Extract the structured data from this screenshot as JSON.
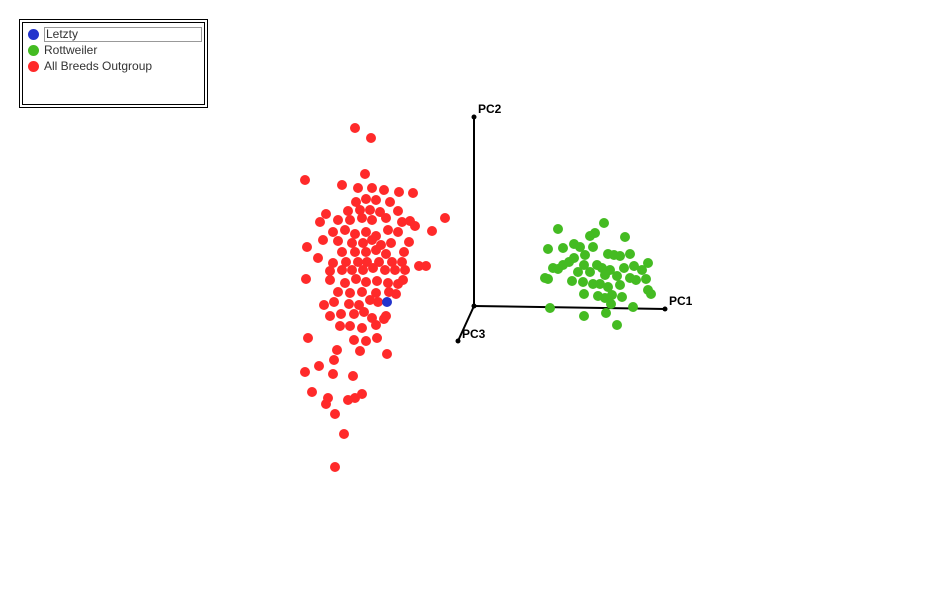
{
  "legend": {
    "items": [
      {
        "label": "Letzty",
        "color": "#2233cc",
        "selected": true
      },
      {
        "label": "Rottweiler",
        "color": "#44bb22"
      },
      {
        "label": "All Breeds Outgroup",
        "color": "#ff2a2a"
      }
    ]
  },
  "chart_data": {
    "type": "scatter",
    "title": "",
    "axes": [
      {
        "name": "PC1"
      },
      {
        "name": "PC2"
      },
      {
        "name": "PC3"
      }
    ],
    "projection_note": "3D PCA point cloud rendered in 2D projection",
    "series": [
      {
        "name": "All Breeds Outgroup",
        "color": "#ff2a2a",
        "points": [
          [
            355,
            128
          ],
          [
            371,
            138
          ],
          [
            305,
            180
          ],
          [
            342,
            185
          ],
          [
            365,
            174
          ],
          [
            358,
            188
          ],
          [
            372,
            188
          ],
          [
            384,
            190
          ],
          [
            399,
            192
          ],
          [
            413,
            193
          ],
          [
            356,
            202
          ],
          [
            366,
            199
          ],
          [
            376,
            200
          ],
          [
            390,
            202
          ],
          [
            348,
            211
          ],
          [
            360,
            210
          ],
          [
            370,
            210
          ],
          [
            380,
            212
          ],
          [
            398,
            211
          ],
          [
            326,
            214
          ],
          [
            320,
            222
          ],
          [
            338,
            220
          ],
          [
            350,
            220
          ],
          [
            362,
            218
          ],
          [
            372,
            220
          ],
          [
            386,
            218
          ],
          [
            402,
            222
          ],
          [
            410,
            221
          ],
          [
            445,
            218
          ],
          [
            333,
            232
          ],
          [
            345,
            230
          ],
          [
            355,
            234
          ],
          [
            366,
            232
          ],
          [
            376,
            236
          ],
          [
            388,
            230
          ],
          [
            398,
            232
          ],
          [
            415,
            226
          ],
          [
            432,
            231
          ],
          [
            307,
            247
          ],
          [
            323,
            240
          ],
          [
            338,
            241
          ],
          [
            352,
            243
          ],
          [
            363,
            243
          ],
          [
            372,
            240
          ],
          [
            381,
            245
          ],
          [
            391,
            243
          ],
          [
            409,
            242
          ],
          [
            342,
            252
          ],
          [
            355,
            252
          ],
          [
            366,
            252
          ],
          [
            376,
            250
          ],
          [
            386,
            254
          ],
          [
            404,
            252
          ],
          [
            333,
            263
          ],
          [
            346,
            262
          ],
          [
            358,
            262
          ],
          [
            367,
            262
          ],
          [
            379,
            262
          ],
          [
            392,
            262
          ],
          [
            402,
            262
          ],
          [
            419,
            266
          ],
          [
            426,
            266
          ],
          [
            330,
            271
          ],
          [
            342,
            270
          ],
          [
            352,
            270
          ],
          [
            363,
            270
          ],
          [
            373,
            268
          ],
          [
            385,
            270
          ],
          [
            395,
            270
          ],
          [
            405,
            270
          ],
          [
            306,
            279
          ],
          [
            330,
            280
          ],
          [
            345,
            283
          ],
          [
            356,
            279
          ],
          [
            366,
            282
          ],
          [
            377,
            281
          ],
          [
            388,
            283
          ],
          [
            398,
            284
          ],
          [
            403,
            280
          ],
          [
            338,
            292
          ],
          [
            350,
            293
          ],
          [
            362,
            292
          ],
          [
            376,
            293
          ],
          [
            389,
            292
          ],
          [
            396,
            294
          ],
          [
            324,
            305
          ],
          [
            334,
            302
          ],
          [
            349,
            304
          ],
          [
            359,
            305
          ],
          [
            370,
            300
          ],
          [
            378,
            302
          ],
          [
            330,
            316
          ],
          [
            341,
            314
          ],
          [
            354,
            314
          ],
          [
            364,
            312
          ],
          [
            372,
            318
          ],
          [
            386,
            316
          ],
          [
            340,
            326
          ],
          [
            350,
            326
          ],
          [
            362,
            328
          ],
          [
            376,
            325
          ],
          [
            384,
            319
          ],
          [
            308,
            338
          ],
          [
            354,
            340
          ],
          [
            366,
            341
          ],
          [
            377,
            338
          ],
          [
            337,
            350
          ],
          [
            360,
            351
          ],
          [
            387,
            354
          ],
          [
            319,
            366
          ],
          [
            334,
            360
          ],
          [
            305,
            372
          ],
          [
            333,
            374
          ],
          [
            353,
            376
          ],
          [
            312,
            392
          ],
          [
            328,
            398
          ],
          [
            348,
            400
          ],
          [
            355,
            398
          ],
          [
            362,
            394
          ],
          [
            326,
            404
          ],
          [
            335,
            414
          ],
          [
            344,
            434
          ],
          [
            335,
            467
          ],
          [
            318,
            258
          ]
        ]
      },
      {
        "name": "Rottweiler",
        "color": "#44bb22",
        "points": [
          [
            558,
            229
          ],
          [
            604,
            223
          ],
          [
            590,
            236
          ],
          [
            595,
            233
          ],
          [
            625,
            237
          ],
          [
            548,
            249
          ],
          [
            563,
            248
          ],
          [
            574,
            244
          ],
          [
            580,
            247
          ],
          [
            585,
            255
          ],
          [
            593,
            247
          ],
          [
            574,
            258
          ],
          [
            563,
            265
          ],
          [
            569,
            262
          ],
          [
            608,
            254
          ],
          [
            614,
            255
          ],
          [
            620,
            256
          ],
          [
            630,
            254
          ],
          [
            584,
            265
          ],
          [
            597,
            265
          ],
          [
            602,
            268
          ],
          [
            610,
            270
          ],
          [
            624,
            268
          ],
          [
            634,
            266
          ],
          [
            648,
            263
          ],
          [
            548,
            279
          ],
          [
            545,
            278
          ],
          [
            553,
            268
          ],
          [
            558,
            269
          ],
          [
            578,
            272
          ],
          [
            590,
            272
          ],
          [
            605,
            275
          ],
          [
            617,
            276
          ],
          [
            630,
            278
          ],
          [
            642,
            270
          ],
          [
            572,
            281
          ],
          [
            583,
            282
          ],
          [
            593,
            284
          ],
          [
            600,
            284
          ],
          [
            608,
            287
          ],
          [
            620,
            285
          ],
          [
            636,
            280
          ],
          [
            646,
            279
          ],
          [
            584,
            294
          ],
          [
            598,
            296
          ],
          [
            605,
            298
          ],
          [
            612,
            295
          ],
          [
            622,
            297
          ],
          [
            648,
            290
          ],
          [
            651,
            294
          ],
          [
            550,
            308
          ],
          [
            611,
            304
          ],
          [
            633,
            307
          ],
          [
            584,
            316
          ],
          [
            606,
            313
          ],
          [
            617,
            325
          ]
        ]
      },
      {
        "name": "Letzty",
        "color": "#2233cc",
        "points": [
          [
            387,
            302
          ]
        ]
      }
    ]
  }
}
